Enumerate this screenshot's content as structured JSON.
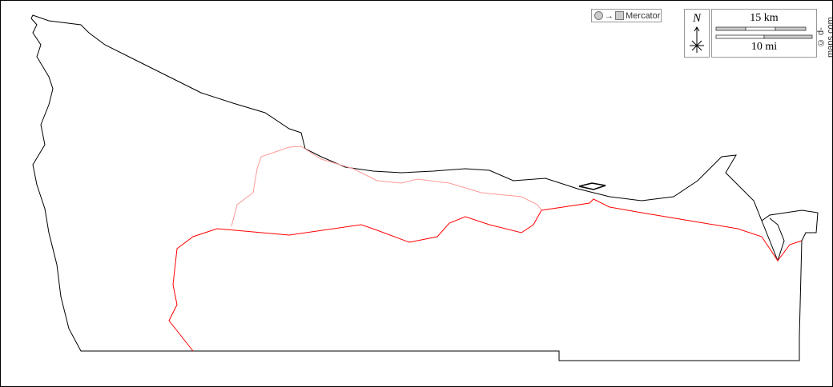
{
  "map": {
    "projection_label": "Mercator",
    "north_label": "N",
    "scale_km_label": "15 km",
    "scale_mi_label": "10 mi",
    "credit": "© d-maps.com",
    "colors": {
      "coast": "#000000",
      "boundary_major": "#ff0000",
      "boundary_minor": "#ff9999",
      "background": "#ffffff"
    },
    "icons": [
      "globe-to-square-projection-icon",
      "compass-rose-icon",
      "scale-bar"
    ]
  }
}
